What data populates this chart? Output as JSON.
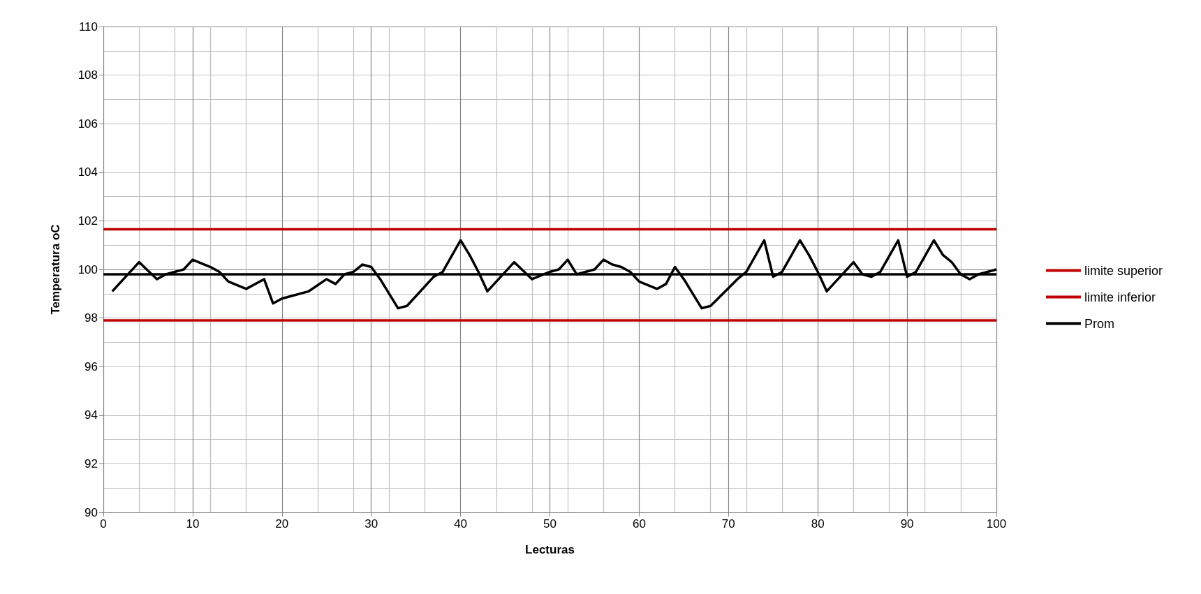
{
  "chart_data": {
    "type": "line",
    "xlabel": "Lecturas",
    "ylabel": "Temperatura oC",
    "xlim": [
      0,
      100
    ],
    "xticks": [
      0,
      10,
      20,
      30,
      40,
      50,
      60,
      70,
      80,
      90,
      100
    ],
    "ylim": [
      90,
      110
    ],
    "yticks": [
      90,
      92,
      94,
      96,
      98,
      100,
      102,
      104,
      106,
      108,
      110
    ],
    "grid": true,
    "legend": "right",
    "marker": "none",
    "series": [
      {
        "color": "#000000",
        "x": [
          1,
          4,
          6,
          7,
          8,
          9,
          10,
          12,
          13,
          14,
          16,
          18,
          19,
          20,
          23,
          25,
          26,
          27,
          28,
          29,
          30,
          31,
          33,
          34,
          37,
          38,
          40,
          41,
          42,
          43,
          46,
          48,
          50,
          51,
          52,
          53,
          55,
          56,
          57,
          58,
          59,
          60,
          62,
          63,
          64,
          65,
          67,
          68,
          71,
          72,
          74,
          75,
          76,
          78,
          79,
          80,
          81,
          84,
          85,
          86,
          87,
          89,
          90,
          91,
          93,
          94,
          95,
          96,
          97,
          98,
          100
        ],
        "values": [
          99.1,
          100.3,
          99.6,
          99.8,
          99.9,
          100.0,
          100.4,
          100.1,
          99.9,
          99.5,
          99.2,
          99.6,
          98.6,
          98.8,
          99.1,
          99.6,
          99.4,
          99.8,
          99.9,
          100.2,
          100.1,
          99.6,
          98.4,
          98.5,
          99.7,
          99.9,
          101.2,
          100.6,
          99.9,
          99.1,
          100.3,
          99.6,
          99.9,
          100.0,
          100.4,
          99.8,
          100.0,
          100.4,
          100.2,
          100.1,
          99.9,
          99.5,
          99.2,
          99.4,
          100.1,
          99.6,
          98.4,
          98.5,
          99.6,
          99.9,
          101.2,
          99.7,
          99.9,
          101.2,
          100.6,
          99.9,
          99.1,
          100.3,
          99.8,
          99.7,
          99.9,
          101.2,
          99.7,
          99.9,
          101.2,
          100.6,
          100.3,
          99.8,
          99.6,
          99.8,
          100.0
        ]
      },
      {
        "name": "limite superior",
        "color": "#c00000",
        "x": [
          0,
          100
        ],
        "values": [
          101.65,
          101.65
        ]
      },
      {
        "name": "limite inferior",
        "color": "#c00000",
        "x": [
          0,
          100
        ],
        "values": [
          97.9,
          97.9
        ]
      },
      {
        "name": "Prom",
        "color": "#000000",
        "x": [
          0,
          100
        ],
        "values": [
          99.8,
          99.8
        ]
      }
    ]
  }
}
